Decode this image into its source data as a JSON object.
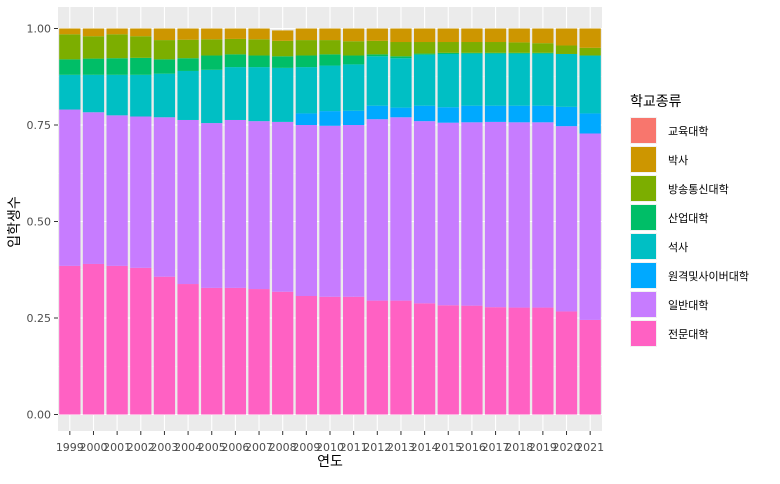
{
  "chart_data": {
    "type": "bar",
    "stacked": true,
    "position": "fill",
    "title": "",
    "xlabel": "연도",
    "ylabel": "입학생수",
    "ylim": [
      0,
      1
    ],
    "y_ticks": [
      "0.00",
      "0.25",
      "0.50",
      "0.75",
      "1.00"
    ],
    "y_tick_values": [
      0,
      0.25,
      0.5,
      0.75,
      1.0
    ],
    "grid": true,
    "legend_position": "right",
    "legend_title": "학교종류",
    "categories": [
      "1999",
      "2000",
      "2001",
      "2002",
      "2003",
      "2004",
      "2005",
      "2006",
      "2007",
      "2008",
      "2009",
      "2010",
      "2011",
      "2012",
      "2013",
      "2014",
      "2015",
      "2016",
      "2017",
      "2018",
      "2019",
      "2020",
      "2021"
    ],
    "series": [
      {
        "name": "전문대학",
        "color": "#FF61C3",
        "values": [
          0.385,
          0.39,
          0.385,
          0.38,
          0.357,
          0.338,
          0.328,
          0.328,
          0.325,
          0.318,
          0.307,
          0.305,
          0.305,
          0.295,
          0.295,
          0.288,
          0.283,
          0.282,
          0.278,
          0.277,
          0.277,
          0.267,
          0.245
        ]
      },
      {
        "name": "일반대학",
        "color": "#C77CFF",
        "values": [
          0.405,
          0.393,
          0.39,
          0.392,
          0.413,
          0.425,
          0.427,
          0.435,
          0.435,
          0.44,
          0.443,
          0.443,
          0.445,
          0.47,
          0.475,
          0.472,
          0.473,
          0.475,
          0.48,
          0.48,
          0.48,
          0.48,
          0.483
        ]
      },
      {
        "name": "원격및사이버대학",
        "color": "#00A9FF",
        "values": [
          0,
          0,
          0,
          0,
          0,
          0,
          0,
          0,
          0,
          0,
          0.03,
          0.038,
          0.037,
          0.035,
          0.025,
          0.04,
          0.04,
          0.043,
          0.042,
          0.043,
          0.043,
          0.05,
          0.052
        ]
      },
      {
        "name": "석사",
        "color": "#00BFC4",
        "values": [
          0.09,
          0.097,
          0.105,
          0.108,
          0.113,
          0.127,
          0.138,
          0.137,
          0.14,
          0.14,
          0.12,
          0.118,
          0.12,
          0.128,
          0.128,
          0.132,
          0.138,
          0.135,
          0.135,
          0.135,
          0.135,
          0.137,
          0.15
        ]
      },
      {
        "name": "산업대학",
        "color": "#00BE67",
        "values": [
          0.04,
          0.042,
          0.043,
          0.044,
          0.037,
          0.033,
          0.037,
          0.033,
          0.03,
          0.03,
          0.03,
          0.029,
          0.023,
          0.005,
          0.005,
          0.003,
          0.003,
          0.002,
          0.002,
          0.002,
          0.002,
          0,
          0
        ]
      },
      {
        "name": "방송통신대학",
        "color": "#7CAE00",
        "values": [
          0.065,
          0.058,
          0.062,
          0.056,
          0.05,
          0.048,
          0.042,
          0.04,
          0.042,
          0.04,
          0.04,
          0.037,
          0.037,
          0.035,
          0.037,
          0.03,
          0.028,
          0.028,
          0.028,
          0.027,
          0.025,
          0.022,
          0.02
        ]
      },
      {
        "name": "박사",
        "color": "#CD9600",
        "values": [
          0.015,
          0.02,
          0.015,
          0.02,
          0.03,
          0.029,
          0.028,
          0.027,
          0.028,
          0.027,
          0.03,
          0.03,
          0.033,
          0.032,
          0.035,
          0.035,
          0.035,
          0.035,
          0.035,
          0.036,
          0.038,
          0.044,
          0.05
        ]
      },
      {
        "name": "교육대학",
        "color": "#F8766D",
        "values": [
          0,
          0,
          0,
          0,
          0,
          0,
          0,
          0,
          0,
          0,
          0,
          0,
          0,
          0,
          0,
          0,
          0,
          0,
          0,
          0,
          0,
          0,
          0
        ]
      }
    ],
    "legend_order": [
      "교육대학",
      "박사",
      "방송통신대학",
      "산업대학",
      "석사",
      "원격및사이버대학",
      "일반대학",
      "전문대학"
    ]
  }
}
